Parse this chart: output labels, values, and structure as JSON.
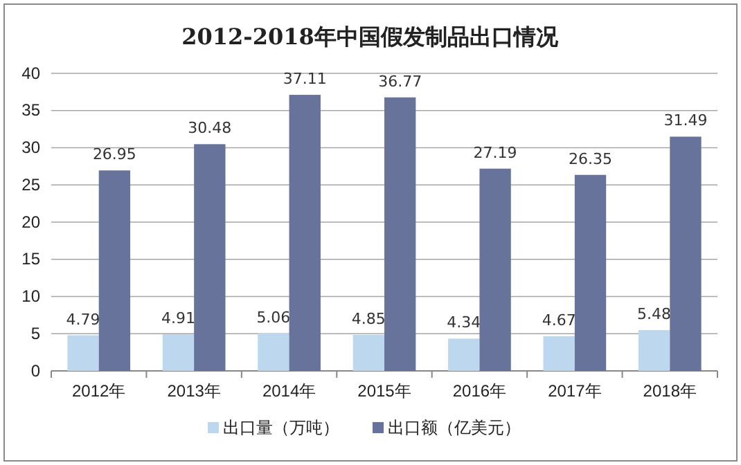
{
  "chart_data": {
    "type": "bar",
    "title": "2012-2018年中国假发制品出口情况",
    "categories": [
      "2012年",
      "2013年",
      "2014年",
      "2015年",
      "2016年",
      "2017年",
      "2018年"
    ],
    "series": [
      {
        "name": "出口量（万吨）",
        "color": "#bdd7ee",
        "values": [
          4.79,
          4.91,
          5.06,
          4.85,
          4.34,
          4.67,
          5.48
        ]
      },
      {
        "name": "出口额（亿美元）",
        "color": "#67739b",
        "values": [
          26.95,
          30.48,
          37.11,
          36.77,
          27.19,
          26.35,
          31.49
        ]
      }
    ],
    "ylim": [
      0,
      40
    ],
    "yticks": [
      0,
      5,
      10,
      15,
      20,
      25,
      30,
      35,
      40
    ],
    "grid": "y",
    "legend": "bottom",
    "data_labels": true
  }
}
